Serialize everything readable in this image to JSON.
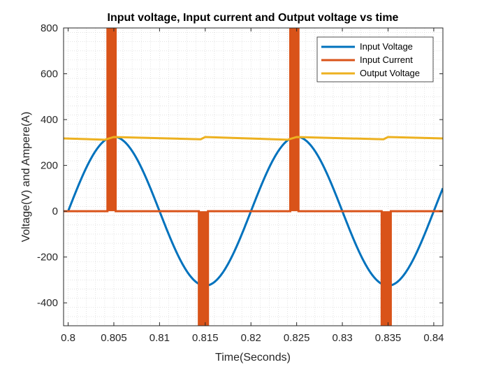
{
  "chart_data": {
    "type": "line",
    "title": "Input voltage, Input current and Output voltage vs time",
    "xlabel": "Time(Seconds)",
    "ylabel": "Voltage(V) and Ampere(A)",
    "xlim": [
      0.7995,
      0.841
    ],
    "ylim": [
      -500,
      800
    ],
    "x_ticks": [
      0.8,
      0.805,
      0.81,
      0.815,
      0.82,
      0.825,
      0.83,
      0.835,
      0.84
    ],
    "x_tick_labels": [
      "0.8",
      "0.805",
      "0.81",
      "0.815",
      "0.82",
      "0.825",
      "0.83",
      "0.835",
      "0.84"
    ],
    "y_ticks": [
      -400,
      -200,
      0,
      200,
      400,
      600,
      800
    ],
    "y_tick_labels": [
      "-400",
      "-200",
      "0",
      "200",
      "400",
      "600",
      "800"
    ],
    "grid": "minor dotted",
    "legend_position": "top-right",
    "series": [
      {
        "name": "Input Voltage",
        "color": "#0072BD",
        "x": [
          0.8,
          0.8025,
          0.805,
          0.8075,
          0.81,
          0.8125,
          0.815,
          0.8175,
          0.82,
          0.8225,
          0.825,
          0.8275,
          0.83,
          0.8325,
          0.835,
          0.8375,
          0.84,
          0.841
        ],
        "values": [
          0,
          230,
          325,
          230,
          0,
          -230,
          -325,
          -230,
          0,
          230,
          325,
          230,
          0,
          -230,
          -325,
          -230,
          0,
          100
        ]
      },
      {
        "name": "Input Current",
        "color": "#D95319",
        "x": [
          0.7995,
          0.8043,
          0.8043,
          0.8052,
          0.8052,
          0.8143,
          0.8143,
          0.8153,
          0.8153,
          0.8243,
          0.8243,
          0.8252,
          0.8252,
          0.8343,
          0.8343,
          0.8353,
          0.8353,
          0.841
        ],
        "values": [
          0,
          0,
          800,
          800,
          0,
          0,
          -500,
          -500,
          0,
          0,
          800,
          800,
          0,
          0,
          -500,
          -500,
          0,
          0
        ]
      },
      {
        "name": "Output Voltage",
        "color": "#EDB120",
        "x": [
          0.7995,
          0.804,
          0.805,
          0.8145,
          0.815,
          0.824,
          0.825,
          0.8345,
          0.835,
          0.841
        ],
        "values": [
          318,
          312,
          324,
          314,
          324,
          312,
          324,
          314,
          324,
          318
        ]
      }
    ]
  }
}
